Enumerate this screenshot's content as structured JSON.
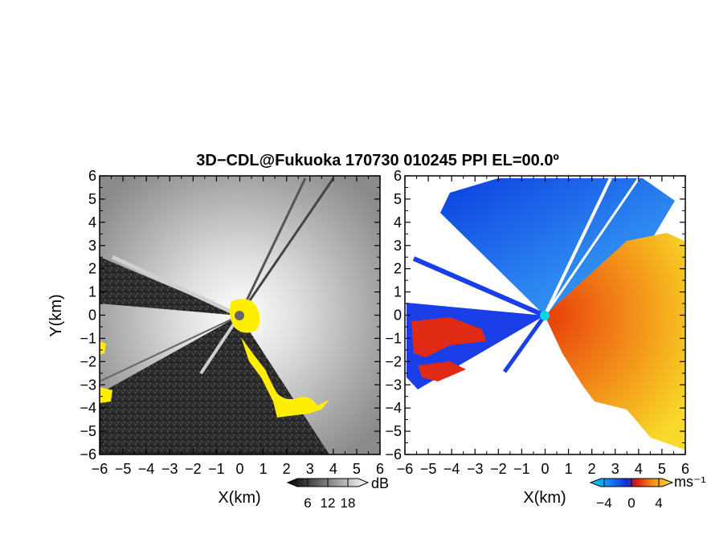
{
  "title": "3D−CDL@Fukuoka 170730 010245 PPI EL=00.0º",
  "colors": {
    "no_data": "#ffffff",
    "center_marker_left": "#666666",
    "center_marker_right": "#00d8e8",
    "highlight": "#ffee00",
    "dark_sector": "#2a2a2a"
  },
  "chart_data": [
    {
      "type": "heatmap",
      "name": "reflectivity",
      "xlabel": "X(km)",
      "ylabel": "Y(km)",
      "xlim": [
        -6,
        6
      ],
      "ylim": [
        -6,
        6
      ],
      "xticks": [
        "−6",
        "−5",
        "−4",
        "−3",
        "−2",
        "−1",
        "0",
        "1",
        "2",
        "3",
        "4",
        "5",
        "6"
      ],
      "yticks": [
        "6",
        "5",
        "4",
        "3",
        "2",
        "1",
        "0",
        "−1",
        "−2",
        "−3",
        "−4",
        "−5",
        "−6"
      ],
      "colorbar": {
        "unit": "dB",
        "ticks": [
          "6",
          "12",
          "18"
        ],
        "range": [
          0,
          24
        ]
      }
    },
    {
      "type": "heatmap",
      "name": "doppler_velocity",
      "xlabel": "X(km)",
      "ylabel": "",
      "xlim": [
        -6,
        6
      ],
      "ylim": [
        -6,
        6
      ],
      "xticks": [
        "−6",
        "−5",
        "−4",
        "−3",
        "−2",
        "−1",
        "0",
        "1",
        "2",
        "3",
        "4",
        "5",
        "6"
      ],
      "yticks": [
        "6",
        "5",
        "4",
        "3",
        "2",
        "1",
        "0",
        "−1",
        "−2",
        "−3",
        "−4",
        "−5",
        "−6"
      ],
      "colorbar": {
        "unit": "ms⁻¹",
        "ticks": [
          "−4",
          "0",
          "4"
        ],
        "range": [
          -6,
          6
        ]
      }
    }
  ]
}
